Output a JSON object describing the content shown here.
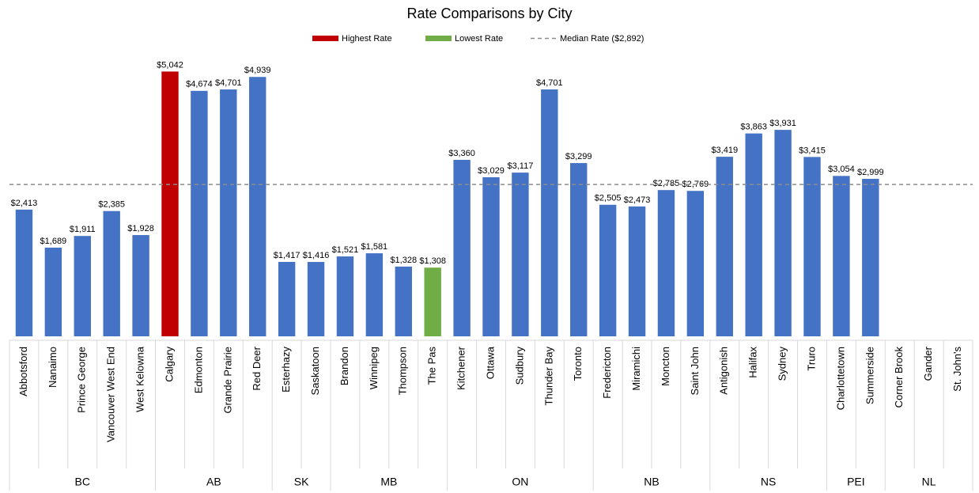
{
  "chart_data": {
    "type": "bar",
    "title": "Rate Comparisons by City",
    "color": "#4472c4",
    "legend": [
      {
        "name": "Highest Rate",
        "color": "#c00000"
      },
      {
        "name": "Lowest Rate",
        "color": "#70ad47"
      }
    ],
    "median": {
      "value": 2892,
      "label": "Median Rate ($2,892)",
      "color": "#8c8c8c"
    },
    "ylim": [
      0,
      5500
    ],
    "groups": [
      {
        "name": "BC",
        "categories": [
          "Abbotsford",
          "Nanaimo",
          "Prince George",
          "Vancouver West End",
          "West Kelowna"
        ],
        "values": [
          2413,
          1689,
          1911,
          2385,
          1928
        ],
        "value_labels": [
          "$2,413",
          "$1,689",
          "$1,911",
          "$2,385",
          "$1,928"
        ]
      },
      {
        "name": "AB",
        "categories": [
          "Calgary",
          "Edmonton",
          "Grande Prairie",
          "Red Deer"
        ],
        "values": [
          5042,
          4674,
          4701,
          4939
        ],
        "value_labels": [
          "$5,042",
          "$4,674",
          "$4,701",
          "$4,939"
        ]
      },
      {
        "name": "SK",
        "categories": [
          "Esterhazy",
          "Saskatoon"
        ],
        "values": [
          1417,
          1416
        ],
        "value_labels": [
          "$1,417",
          "$1,416"
        ]
      },
      {
        "name": "MB",
        "categories": [
          "Brandon",
          "Winnipeg",
          "Thompson",
          "The Pas"
        ],
        "values": [
          1521,
          1581,
          1328,
          1308
        ],
        "value_labels": [
          "$1,521",
          "$1,581",
          "$1,328",
          "$1,308"
        ]
      },
      {
        "name": "ON",
        "categories": [
          "Kitchener",
          "Ottawa",
          "Sudbury",
          "Thunder Bay",
          "Toronto"
        ],
        "values": [
          3360,
          3029,
          3117,
          4701,
          3299
        ],
        "value_labels": [
          "$3,360",
          "$3,029",
          "$3,117",
          "$4,701",
          "$3,299"
        ]
      },
      {
        "name": "NB",
        "categories": [
          "Fredericton",
          "Miramichi",
          "Moncton",
          "Saint John"
        ],
        "values": [
          2505,
          2473,
          2785,
          2769
        ],
        "value_labels": [
          "$2,505",
          "$2,473",
          "$2,785",
          "$2,769"
        ]
      },
      {
        "name": "NS",
        "categories": [
          "Antigonish",
          "Halifax",
          "Sydney",
          "Truro"
        ],
        "values": [
          3419,
          3863,
          3931,
          3415
        ],
        "value_labels": [
          "$3,419",
          "$3,863",
          "$3,931",
          "$3,415"
        ]
      },
      {
        "name": "PEI",
        "categories": [
          "Charlottetown",
          "Summerside"
        ],
        "values": [
          3054,
          2999
        ],
        "value_labels": [
          "$3,054",
          "$2,999"
        ]
      },
      {
        "name": "NL",
        "categories": [
          "Corner Brook",
          "Gander",
          "St. John's"
        ],
        "values": [
          null,
          null,
          null
        ],
        "value_labels": [
          null,
          null,
          null
        ]
      }
    ]
  }
}
